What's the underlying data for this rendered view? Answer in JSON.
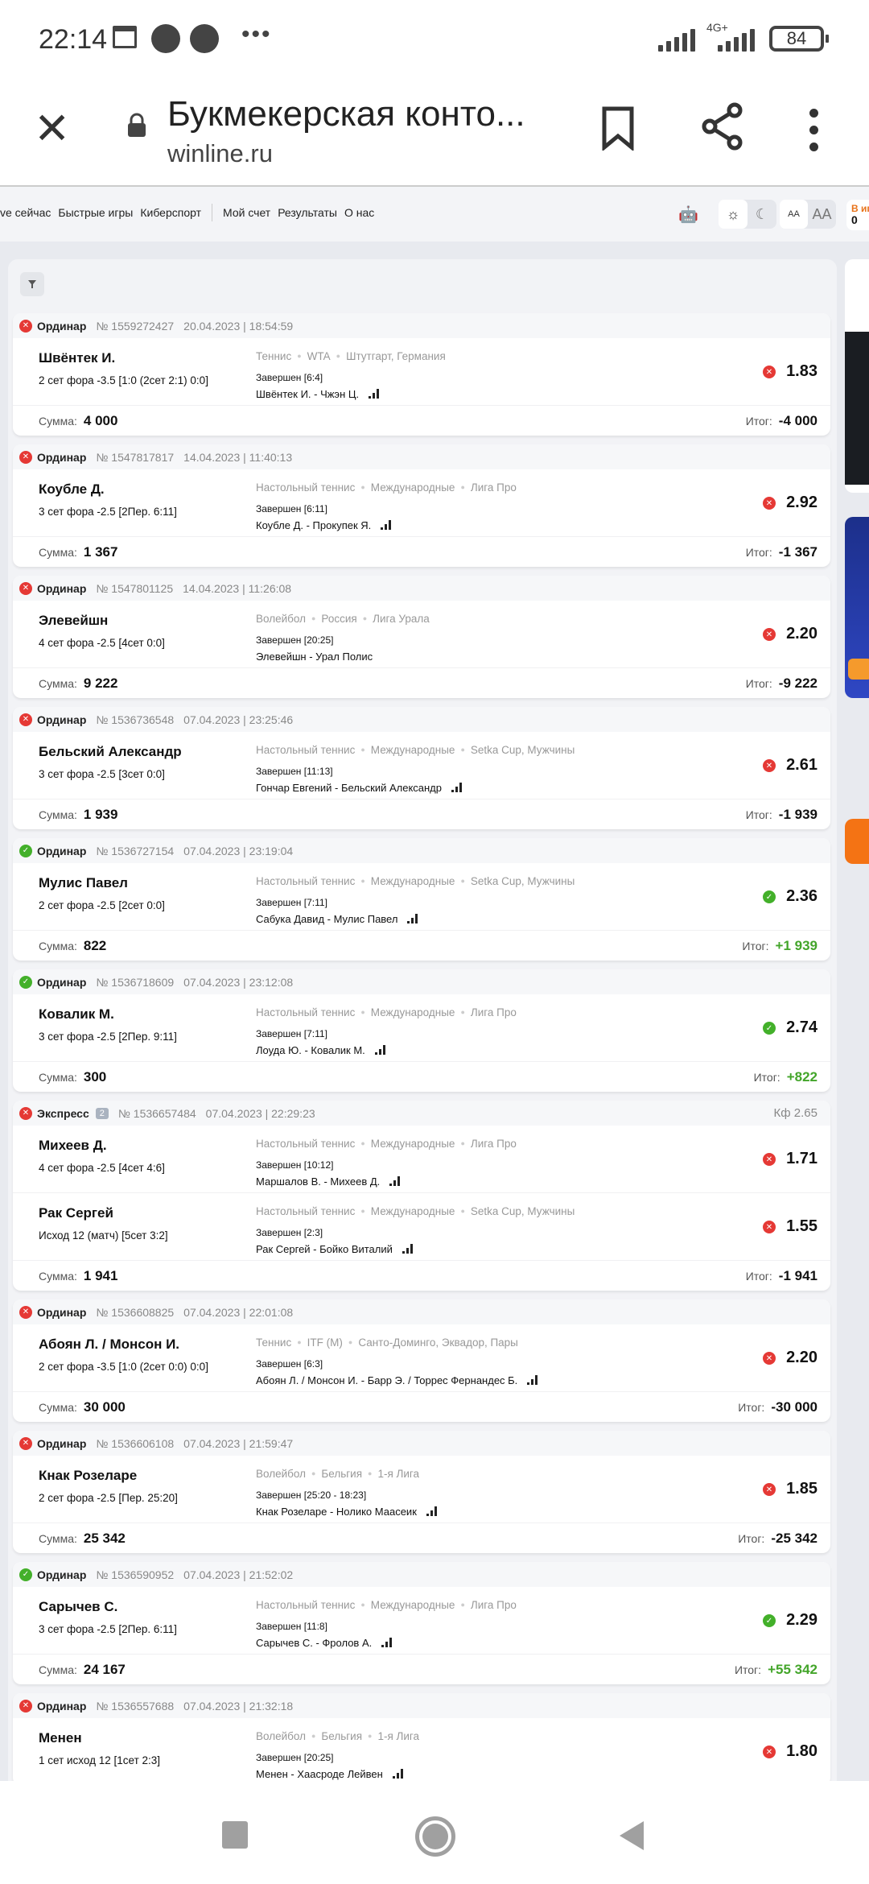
{
  "status_bar": {
    "time": "22:14",
    "network": "4G+",
    "battery": "84"
  },
  "browser": {
    "title": "Букмекерская конто...",
    "url": "winline.ru"
  },
  "site_nav": {
    "links": [
      "ve сейчас",
      "Быстрые игры",
      "Киберспорт",
      "Мой счет",
      "Результаты",
      "О нас"
    ],
    "font_small": "AA",
    "font_large": "AA",
    "wallet_label": "В иг",
    "wallet_value": "0"
  },
  "labels": {
    "sum": "Сумма:",
    "result": "Итог:",
    "finished_prefix": "Завершен"
  },
  "colors": {
    "lost": "#e53935",
    "won": "#43b02a",
    "accent": "#f07a1a"
  },
  "bets": [
    {
      "status": "lost",
      "type": "Ординар",
      "number": "№ 1559272427",
      "datetime": "20.04.2023 | 18:54:59",
      "events": [
        {
          "name": "Швёнтек И.",
          "market": "2 сет фора -3.5 [1:0 (2сет 2:1) 0:0]",
          "sport": [
            "Теннис",
            "WTA",
            "Штутгарт, Германия"
          ],
          "finished": "Завершен [6:4]",
          "match": "Швёнтек И. - Чжэн Ц.",
          "odds": "1.83",
          "status": "lost"
        }
      ],
      "sum": "4 000",
      "result": "-4 000"
    },
    {
      "status": "lost",
      "type": "Ординар",
      "number": "№ 1547817817",
      "datetime": "14.04.2023 | 11:40:13",
      "events": [
        {
          "name": "Коубле Д.",
          "market": "3 сет фора -2.5 [2Пер. 6:11]",
          "sport": [
            "Настольный теннис",
            "Международные",
            "Лига Про"
          ],
          "finished": "Завершен [6:11]",
          "match": "Коубле Д. - Прокупек Я.",
          "odds": "2.92",
          "status": "lost"
        }
      ],
      "sum": "1 367",
      "result": "-1 367"
    },
    {
      "status": "lost",
      "type": "Ординар",
      "number": "№ 1547801125",
      "datetime": "14.04.2023 | 11:26:08",
      "events": [
        {
          "name": "Элевейшн",
          "market": "4 сет фора -2.5 [4сет 0:0]",
          "sport": [
            "Волейбол",
            "Россия",
            "Лига Урала"
          ],
          "finished": "Завершен [20:25]",
          "match": "Элевейшн - Урал Полис",
          "odds": "2.20",
          "status": "lost",
          "nobars": true
        }
      ],
      "sum": "9 222",
      "result": "-9 222"
    },
    {
      "status": "lost",
      "type": "Ординар",
      "number": "№ 1536736548",
      "datetime": "07.04.2023 | 23:25:46",
      "events": [
        {
          "name": "Бельский Александр",
          "market": "3 сет фора -2.5 [3сет 0:0]",
          "sport": [
            "Настольный теннис",
            "Международные",
            "Setka Cup, Мужчины"
          ],
          "finished": "Завершен [11:13]",
          "match": "Гончар Евгений - Бельский Александр",
          "odds": "2.61",
          "status": "lost"
        }
      ],
      "sum": "1 939",
      "result": "-1 939"
    },
    {
      "status": "won",
      "type": "Ординар",
      "number": "№ 1536727154",
      "datetime": "07.04.2023 | 23:19:04",
      "events": [
        {
          "name": "Мулис Павел",
          "market": "2 сет фора -2.5 [2сет 0:0]",
          "sport": [
            "Настольный теннис",
            "Международные",
            "Setka Cup, Мужчины"
          ],
          "finished": "Завершен [7:11]",
          "match": "Сабука Давид - Мулис Павел",
          "odds": "2.36",
          "status": "won"
        }
      ],
      "sum": "822",
      "result": "+1 939"
    },
    {
      "status": "won",
      "type": "Ординар",
      "number": "№ 1536718609",
      "datetime": "07.04.2023 | 23:12:08",
      "events": [
        {
          "name": "Ковалик М.",
          "market": "3 сет фора -2.5 [2Пер. 9:11]",
          "sport": [
            "Настольный теннис",
            "Международные",
            "Лига Про"
          ],
          "finished": "Завершен [7:11]",
          "match": "Лоуда Ю. - Ковалик М.",
          "odds": "2.74",
          "status": "won"
        }
      ],
      "sum": "300",
      "result": "+822"
    },
    {
      "status": "lost",
      "type": "Экспресс",
      "count": "2",
      "number": "№ 1536657484",
      "datetime": "07.04.2023 | 22:29:23",
      "coef": "Кф 2.65",
      "events": [
        {
          "name": "Михеев Д.",
          "market": "4 сет фора -2.5 [4сет 4:6]",
          "sport": [
            "Настольный теннис",
            "Международные",
            "Лига Про"
          ],
          "finished": "Завершен [10:12]",
          "match": "Маршалов В. - Михеев Д.",
          "odds": "1.71",
          "status": "lost"
        },
        {
          "name": "Рак Сергей",
          "market": "Исход 12 (матч) [5сет 3:2]",
          "sport": [
            "Настольный теннис",
            "Международные",
            "Setka Cup, Мужчины"
          ],
          "finished": "Завершен [2:3]",
          "match": "Рак Сергей - Бойко Виталий",
          "odds": "1.55",
          "status": "lost"
        }
      ],
      "sum": "1 941",
      "result": "-1 941"
    },
    {
      "status": "lost",
      "type": "Ординар",
      "number": "№ 1536608825",
      "datetime": "07.04.2023 | 22:01:08",
      "events": [
        {
          "name": "Абоян Л. / Монсон И.",
          "market": "2 сет фора -3.5 [1:0 (2сет 0:0) 0:0]",
          "sport": [
            "Теннис",
            "ITF (M)",
            "Санто-Доминго, Эквадор, Пары"
          ],
          "finished": "Завершен [6:3]",
          "match": "Абоян Л. / Монсон И. - Барр Э. / Торрес Фернандес Б.",
          "odds": "2.20",
          "status": "lost"
        }
      ],
      "sum": "30 000",
      "result": "-30 000"
    },
    {
      "status": "lost",
      "type": "Ординар",
      "number": "№ 1536606108",
      "datetime": "07.04.2023 | 21:59:47",
      "events": [
        {
          "name": "Кнак Розеларе",
          "market": "2 сет фора -2.5 [Пер. 25:20]",
          "sport": [
            "Волейбол",
            "Бельгия",
            "1-я Лига"
          ],
          "finished": "Завершен [25:20 - 18:23]",
          "match": "Кнак Розеларе - Нолико Маасеик",
          "odds": "1.85",
          "status": "lost"
        }
      ],
      "sum": "25 342",
      "result": "-25 342"
    },
    {
      "status": "won",
      "type": "Ординар",
      "number": "№ 1536590952",
      "datetime": "07.04.2023 | 21:52:02",
      "events": [
        {
          "name": "Сарычев С.",
          "market": "3 сет фора -2.5 [2Пер. 6:11]",
          "sport": [
            "Настольный теннис",
            "Международные",
            "Лига Про"
          ],
          "finished": "Завершен [11:8]",
          "match": "Сарычев С. - Фролов А.",
          "odds": "2.29",
          "status": "won"
        }
      ],
      "sum": "24 167",
      "result": "+55 342"
    },
    {
      "status": "lost",
      "type": "Ординар",
      "number": "№ 1536557688",
      "datetime": "07.04.2023 | 21:32:18",
      "events": [
        {
          "name": "Менен",
          "market": "1 сет исход 12 [1сет 2:3]",
          "sport": [
            "Волейбол",
            "Бельгия",
            "1-я Лига"
          ],
          "finished": "Завершен [20:25]",
          "match": "Менен - Хаасроде Лейвен",
          "odds": "1.80",
          "status": "lost"
        }
      ]
    }
  ]
}
